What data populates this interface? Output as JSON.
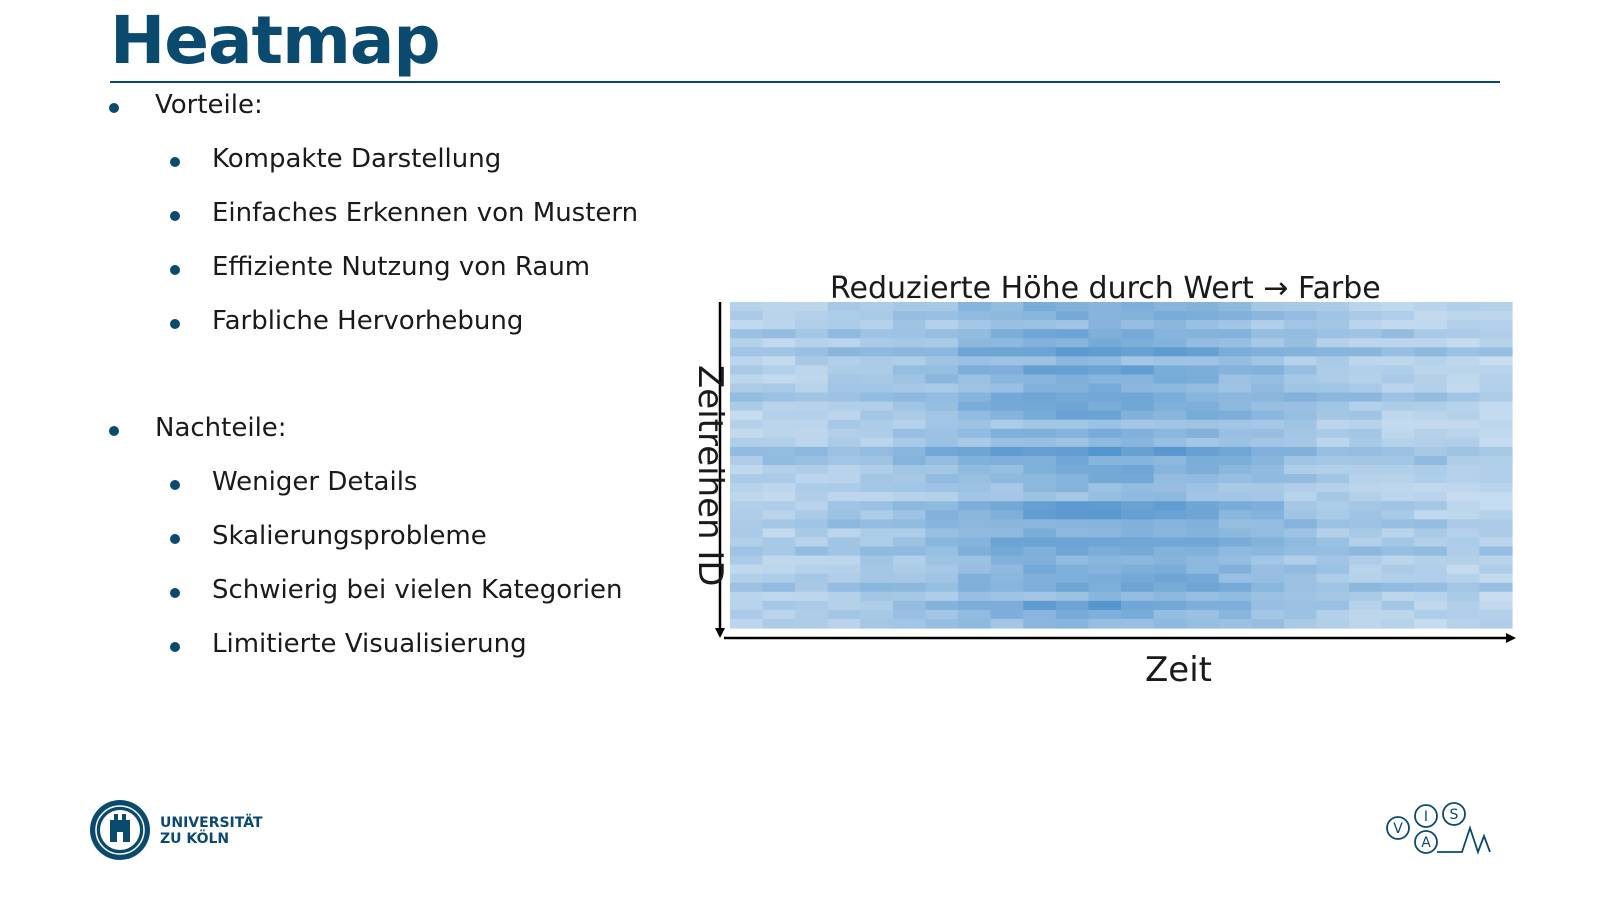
{
  "slide": {
    "title": "Heatmap"
  },
  "pros": {
    "heading": "Vorteile:",
    "items": [
      "Kompakte Darstellung",
      "Einfaches Erkennen von Mustern",
      "Effiziente Nutzung von Raum",
      "Farbliche Hervorhebung"
    ]
  },
  "cons": {
    "heading": "Nachteile:",
    "items": [
      "Weniger Details",
      "Skalierungsprobleme",
      "Schwierig bei vielen Kategorien",
      "Limitierte Visualisierung"
    ]
  },
  "chart_data": {
    "type": "heatmap",
    "title": "Reduzierte Höhe durch Wert → Farbe",
    "xlabel": "Zeit",
    "ylabel": "Zeitreihen ID",
    "colors": {
      "low": "#ddeaf6",
      "high": "#3a85c6",
      "axis": "#000000"
    },
    "n_rows": 36,
    "n_cols": 24
  },
  "footer": {
    "university_line1": "UNIVERSITÄT",
    "university_line2": "ZU KÖLN",
    "brand_letters": [
      "V",
      "I",
      "S",
      "A",
      "M"
    ]
  },
  "colors": {
    "accent": "#0a4a6e"
  }
}
